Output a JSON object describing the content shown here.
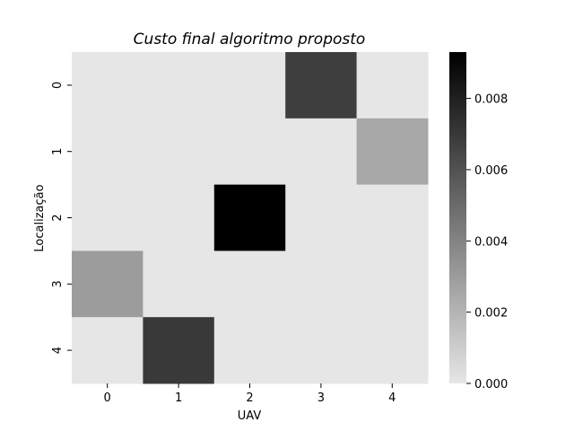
{
  "chart_data": {
    "type": "heatmap",
    "title": "Custo final algoritmo proposto",
    "xlabel": "UAV",
    "ylabel": "Localização",
    "x_categories": [
      "0",
      "1",
      "2",
      "3",
      "4"
    ],
    "y_categories": [
      "0",
      "1",
      "2",
      "3",
      "4"
    ],
    "values": [
      [
        0,
        0,
        0,
        0.0068,
        0
      ],
      [
        0,
        0,
        0,
        0,
        0.0025
      ],
      [
        0,
        0,
        0.0093,
        0,
        0
      ],
      [
        0.003,
        0,
        0,
        0,
        0
      ],
      [
        0,
        0.007,
        0,
        0,
        0
      ]
    ],
    "vmin": 0,
    "vmax": 0.0093,
    "colorbar": {
      "ticks": [
        0,
        0.002,
        0.004,
        0.006,
        0.008
      ],
      "tick_labels": [
        "0.000",
        "0.002",
        "0.004",
        "0.006",
        "0.008"
      ]
    },
    "colormap": {
      "low": "#e6e6e6",
      "high": "#000000"
    },
    "grid": false
  }
}
